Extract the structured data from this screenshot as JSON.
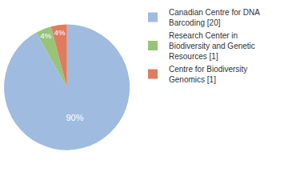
{
  "chart_data": {
    "type": "pie",
    "categories": [
      "Canadian Centre for DNA Barcoding [20]",
      "Research Center in Biodiversity and Genetic Resources [1]",
      "Centre for Biodiversity Genomics [1]"
    ],
    "values": [
      90,
      4,
      4
    ],
    "value_labels": [
      "90%",
      "4%",
      "4%"
    ],
    "colors": [
      "#9fbbe0",
      "#98c47a",
      "#e07b5e"
    ],
    "data_labels": true,
    "legend": "upper right"
  }
}
